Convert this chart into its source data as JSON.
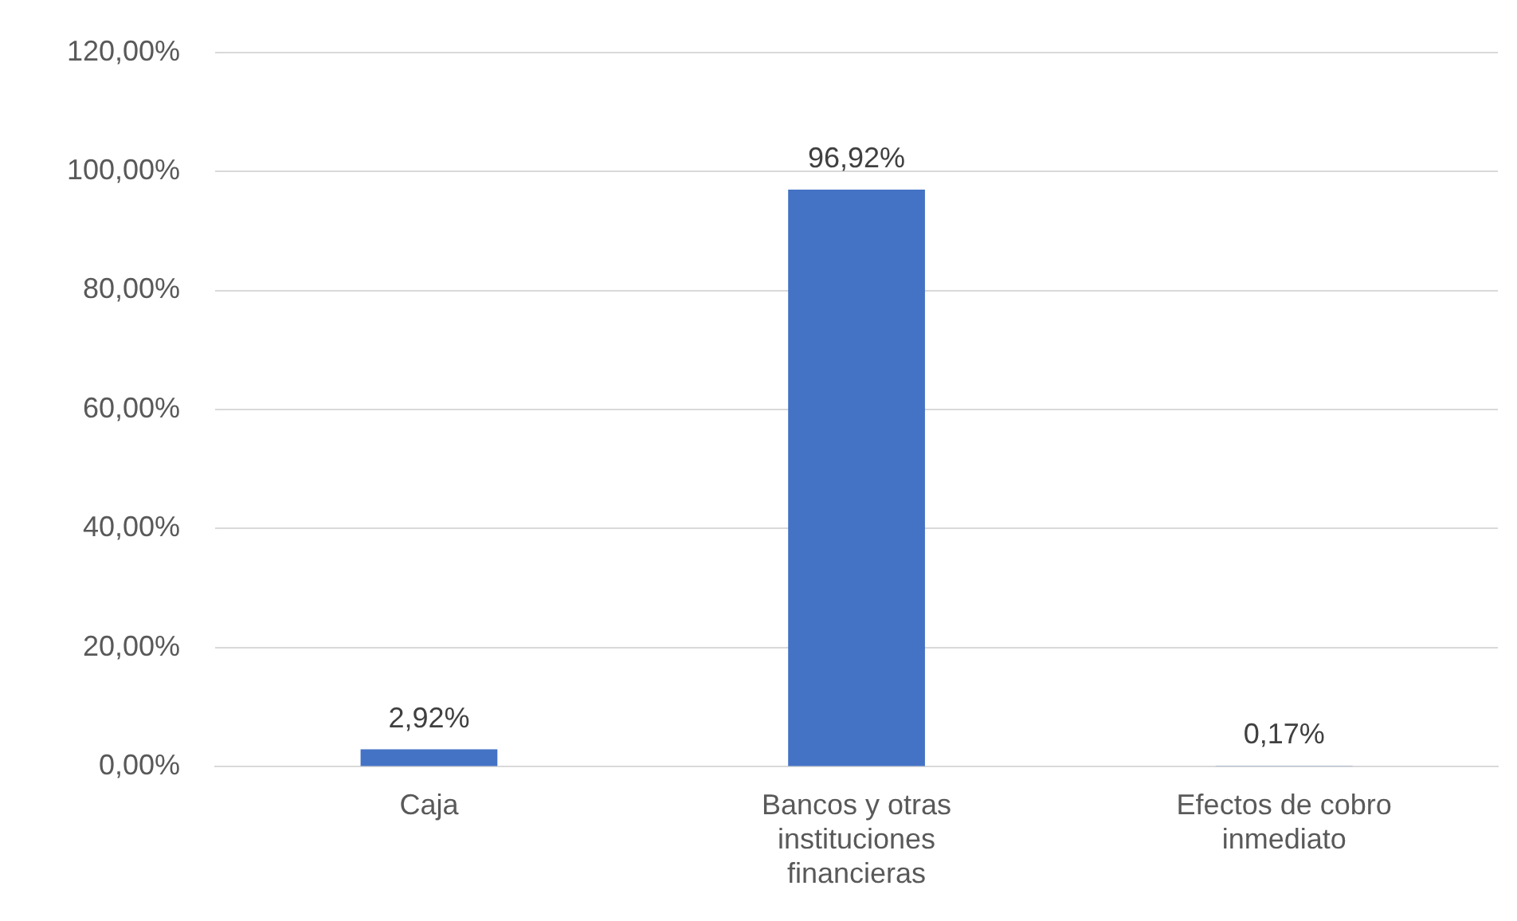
{
  "chart_data": {
    "type": "bar",
    "categories": [
      "Caja",
      "Bancos y otras instituciones financieras",
      "Efectos de cobro inmediato"
    ],
    "values": [
      2.92,
      96.92,
      0.17
    ],
    "color": "#4472c4",
    "value_labels": [
      "2,92%",
      "96,92%",
      "0,17%"
    ],
    "ylim": [
      0,
      120
    ],
    "yticks": [
      {
        "value": 0,
        "label": "0,00%"
      },
      {
        "value": 20,
        "label": "20,00%"
      },
      {
        "value": 40,
        "label": "40,00%"
      },
      {
        "value": 60,
        "label": "60,00%"
      },
      {
        "value": 80,
        "label": "80,00%"
      },
      {
        "value": 100,
        "label": "100,00%"
      },
      {
        "value": 120,
        "label": "120,00%"
      }
    ],
    "grid": "y"
  }
}
